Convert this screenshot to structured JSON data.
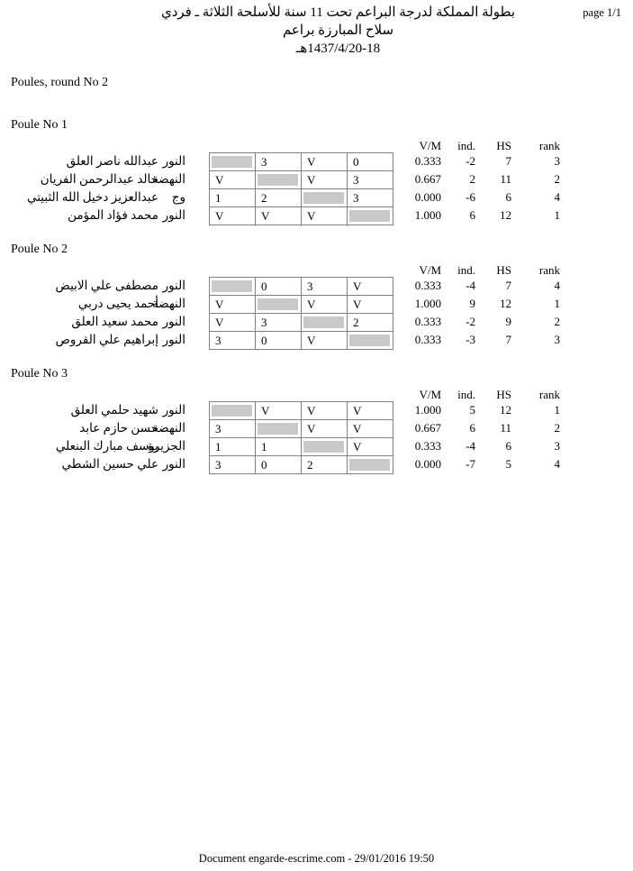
{
  "page": {
    "page_number": "page 1/1",
    "title_lines": [
      "بطولة المملكة لدرجة البراعم تحت 11 سنة للأسلحة الثلاثة ـ فردي",
      "سلاح المبارزة براعم",
      "1437/4/20-18هـ"
    ],
    "round_title": "Poules, round No 2",
    "footer": "Document engarde-escrime.com  - 29/01/2016 19:50"
  },
  "stats_headers": {
    "vm": "V/M",
    "ind": "ind.",
    "hs": "HS",
    "rank": "rank"
  },
  "colors": {
    "diagonal_fill": "#c9c9c9",
    "grid_border": "#808080"
  },
  "poules": [
    {
      "label": "Poule No 1",
      "fencers": [
        {
          "name": "عبدالله ناصر العلق",
          "club": "النور",
          "scores": [
            null,
            "3",
            "V",
            "0"
          ],
          "vm": "0.333",
          "ind": "-2",
          "hs": "7",
          "rank": "3"
        },
        {
          "name": "خالد عبدالرحمن الفريان",
          "club": "النهضة",
          "scores": [
            "V",
            null,
            "V",
            "3"
          ],
          "vm": "0.667",
          "ind": "2",
          "hs": "11",
          "rank": "2"
        },
        {
          "name": "عبدالعزيز دخيل الله الثبيتي",
          "club": "وج",
          "scores": [
            "1",
            "2",
            null,
            "3"
          ],
          "vm": "0.000",
          "ind": "-6",
          "hs": "6",
          "rank": "4"
        },
        {
          "name": "محمد فؤاد المؤمن",
          "club": "النور",
          "scores": [
            "V",
            "V",
            "V",
            null
          ],
          "vm": "1.000",
          "ind": "6",
          "hs": "12",
          "rank": "1"
        }
      ]
    },
    {
      "label": "Poule No 2",
      "fencers": [
        {
          "name": "مصطفى علي الابيض",
          "club": "النور",
          "scores": [
            null,
            "0",
            "3",
            "V"
          ],
          "vm": "0.333",
          "ind": "-4",
          "hs": "7",
          "rank": "4"
        },
        {
          "name": "أحمد يحيى دربي",
          "club": "النهضة",
          "scores": [
            "V",
            null,
            "V",
            "V"
          ],
          "vm": "1.000",
          "ind": "9",
          "hs": "12",
          "rank": "1"
        },
        {
          "name": "محمد سعيد العلق",
          "club": "النور",
          "scores": [
            "V",
            "3",
            null,
            "2"
          ],
          "vm": "0.333",
          "ind": "-2",
          "hs": "9",
          "rank": "2"
        },
        {
          "name": "إبراهيم علي القروص",
          "club": "النور",
          "scores": [
            "3",
            "0",
            "V",
            null
          ],
          "vm": "0.333",
          "ind": "-3",
          "hs": "7",
          "rank": "3"
        }
      ]
    },
    {
      "label": "Poule No 3",
      "fencers": [
        {
          "name": "شهيد حلمي العلق",
          "club": "النور",
          "scores": [
            null,
            "V",
            "V",
            "V"
          ],
          "vm": "1.000",
          "ind": "5",
          "hs": "12",
          "rank": "1"
        },
        {
          "name": "حسن حازم عابد",
          "club": "النهضة",
          "scores": [
            "3",
            null,
            "V",
            "V"
          ],
          "vm": "0.667",
          "ind": "6",
          "hs": "11",
          "rank": "2"
        },
        {
          "name": "يوسف مبارك البنعلي",
          "club": "الجزيرة",
          "scores": [
            "1",
            "1",
            null,
            "V"
          ],
          "vm": "0.333",
          "ind": "-4",
          "hs": "6",
          "rank": "3"
        },
        {
          "name": "علي حسين الشطي",
          "club": "النور",
          "scores": [
            "3",
            "0",
            "2",
            null
          ],
          "vm": "0.000",
          "ind": "-7",
          "hs": "5",
          "rank": "4"
        }
      ]
    }
  ]
}
